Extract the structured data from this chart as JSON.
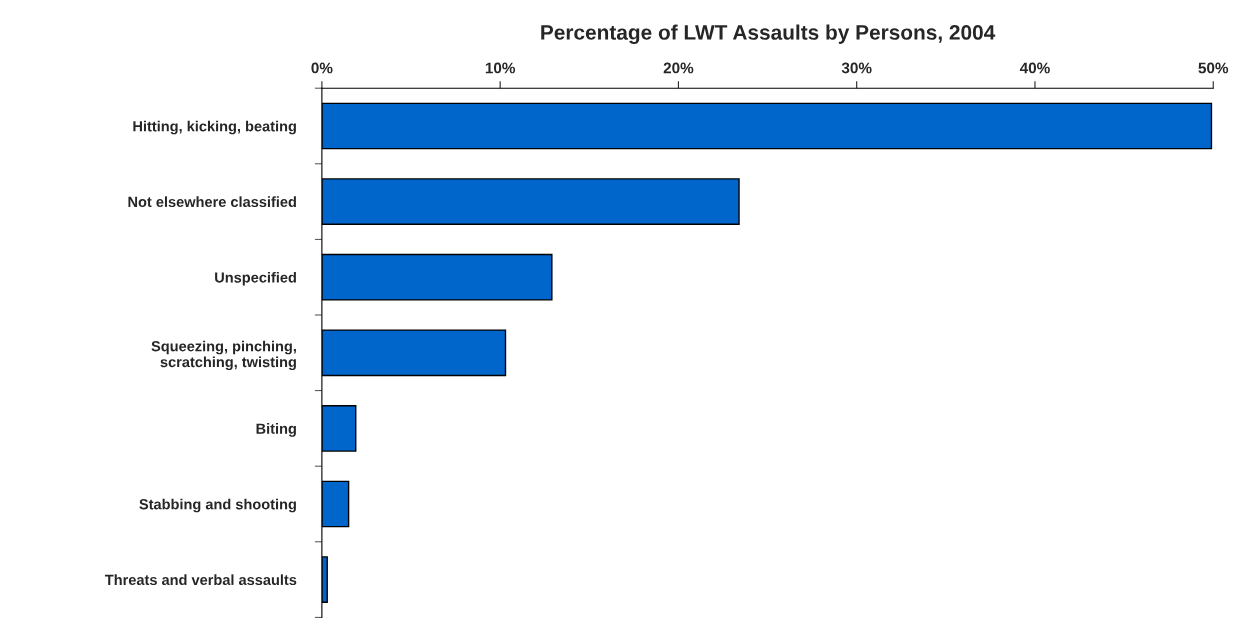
{
  "chart_data": {
    "type": "bar",
    "orientation": "horizontal",
    "title": "Percentage of LWT Assaults by Persons, 2004",
    "categories": [
      "Hitting, kicking, beating",
      "Not elsewhere classified",
      "Unspecified",
      "Squeezing, pinching,\nscratching, twisting",
      "Biting",
      "Stabbing and shooting",
      "Threats and verbal assaults"
    ],
    "values": [
      49.9,
      23.4,
      12.9,
      10.3,
      1.9,
      1.5,
      0.3
    ],
    "color": "#0066cc",
    "xlim": [
      0,
      50
    ],
    "xticks": [
      {
        "value": 0,
        "label": "0%"
      },
      {
        "value": 10,
        "label": "10%"
      },
      {
        "value": 20,
        "label": "20%"
      },
      {
        "value": 30,
        "label": "30%"
      },
      {
        "value": 40,
        "label": "40%"
      },
      {
        "value": 50,
        "label": "50%"
      }
    ],
    "grid": false
  }
}
